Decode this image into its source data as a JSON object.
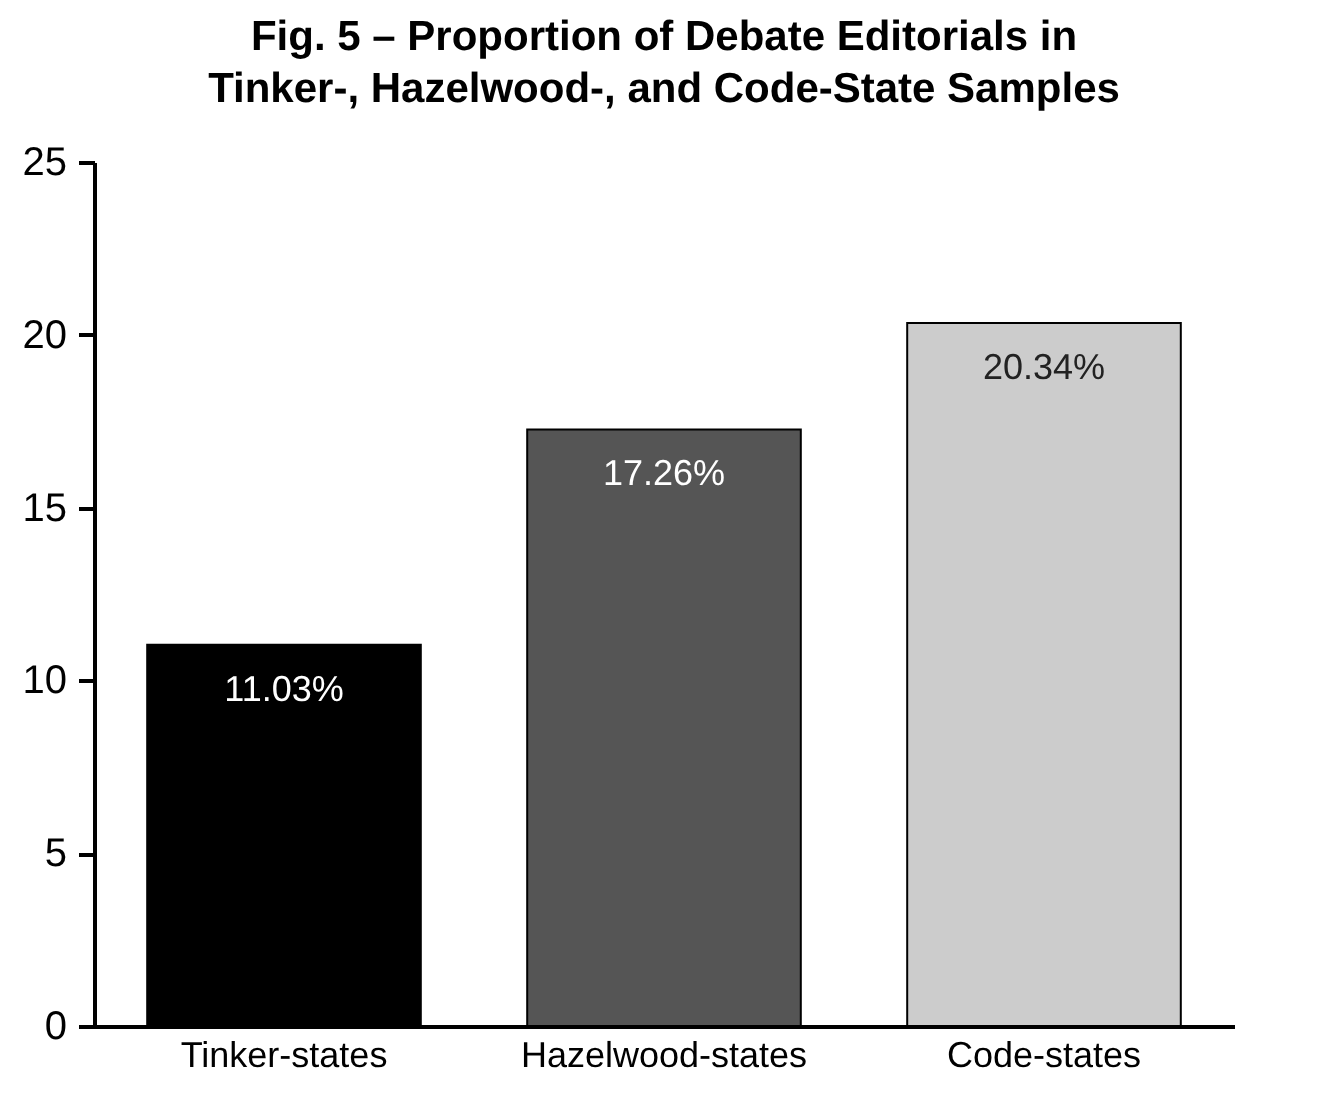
{
  "chart_data": {
    "type": "bar",
    "title": "Fig. 5 – Proportion of Debate Editorials in\nTinker-, Hazelwood-, and Code-State Samples",
    "categories": [
      "Tinker-states",
      "Hazelwood-states",
      "Code-states"
    ],
    "values": [
      11.03,
      17.26,
      20.34
    ],
    "colors": [
      "#000000",
      "#555555",
      "#cccccc"
    ],
    "value_labels": [
      "11.03%",
      "17.26%",
      "20.34%"
    ],
    "ylim": [
      0,
      25
    ],
    "yticks": [
      0,
      5,
      10,
      15,
      20,
      25
    ]
  }
}
